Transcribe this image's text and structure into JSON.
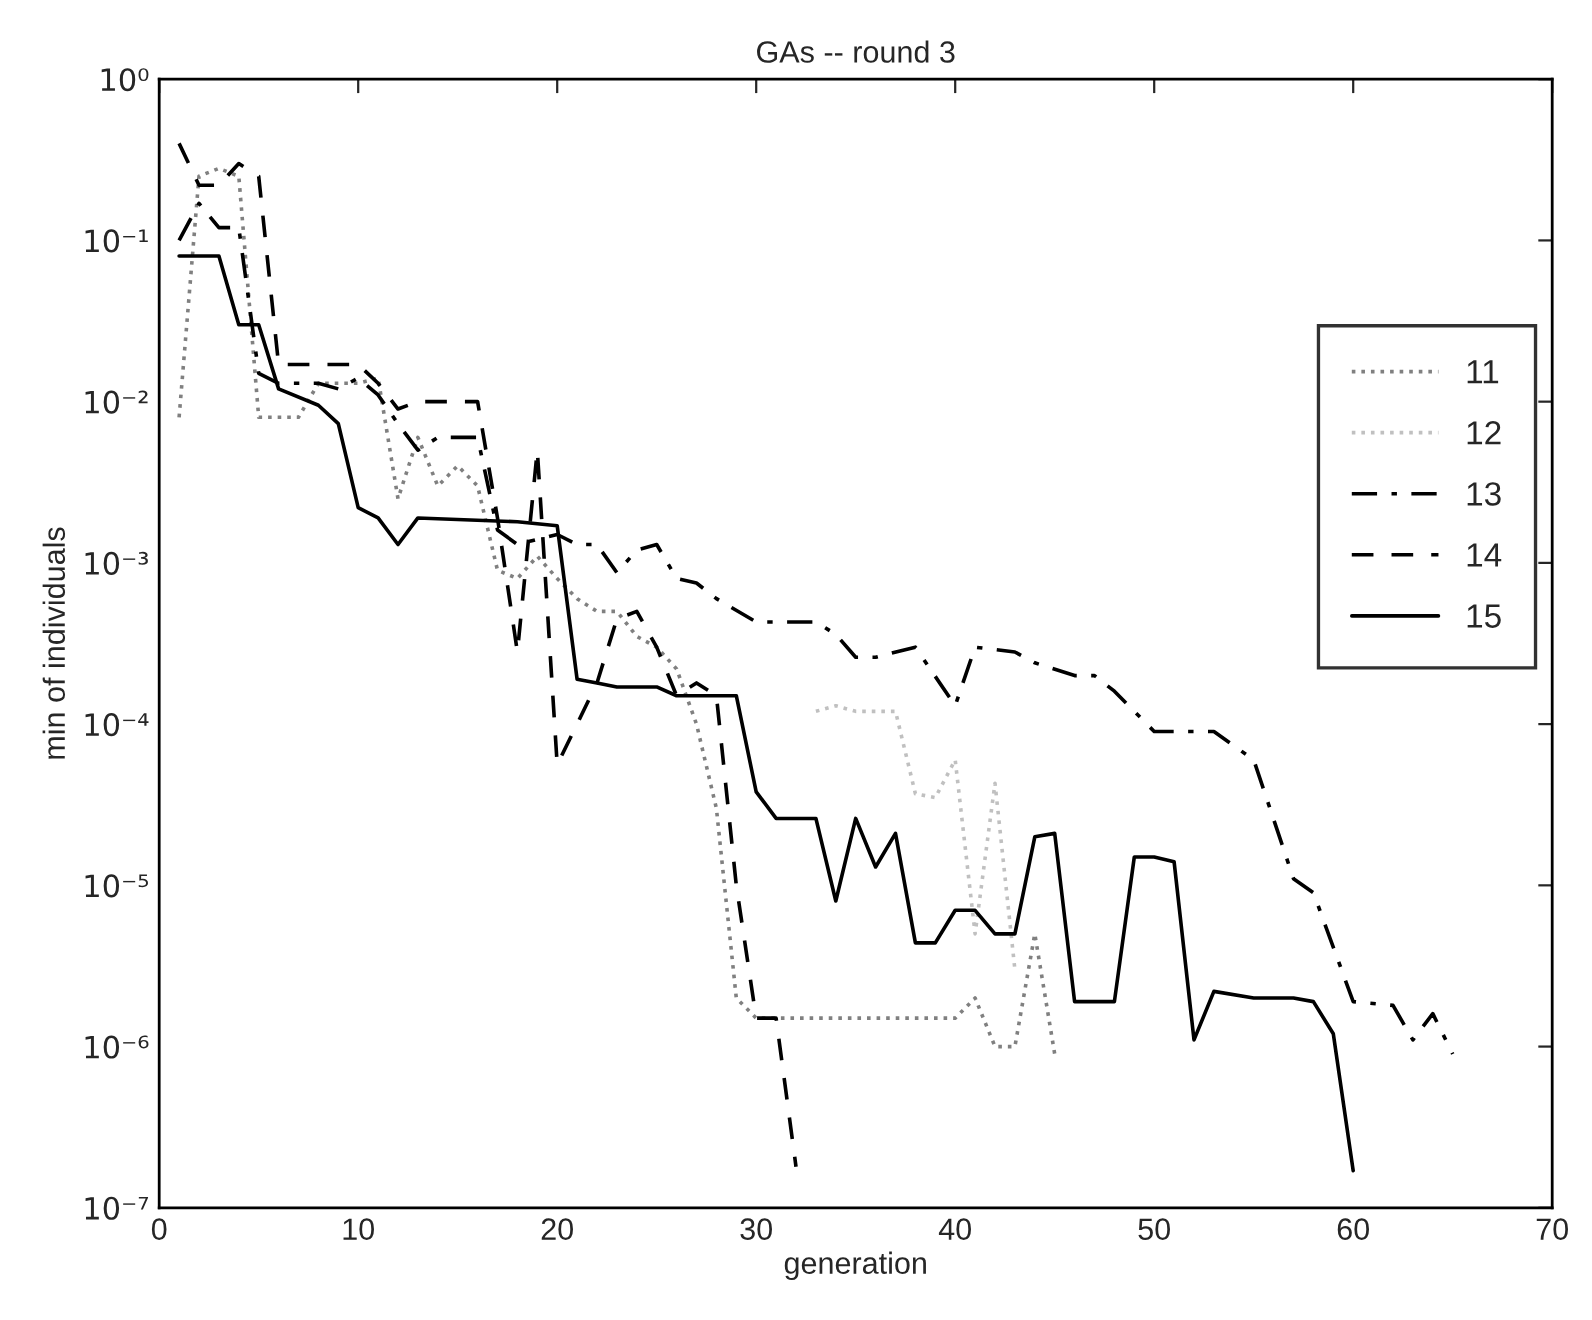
{
  "chart_data": {
    "type": "line",
    "title": "GAs -- round 3",
    "xlabel": "generation",
    "ylabel": "min of individuals",
    "log": "y",
    "xlim": [
      0,
      70
    ],
    "xticks": [
      0,
      10,
      20,
      30,
      40,
      50,
      60,
      70
    ],
    "ylim": [
      1e-07,
      1
    ],
    "yticks": [
      {
        "value": 1e-07,
        "label": "10⁻⁷"
      },
      {
        "value": 1e-06,
        "label": "10⁻⁶"
      },
      {
        "value": 1e-05,
        "label": "10⁻⁵"
      },
      {
        "value": 0.0001,
        "label": "10⁻⁴"
      },
      {
        "value": 0.001,
        "label": "10⁻³"
      },
      {
        "value": 0.01,
        "label": "10⁻²"
      },
      {
        "value": 0.1,
        "label": "10⁻¹"
      },
      {
        "value": 1,
        "label": "10⁰"
      }
    ],
    "grid": false,
    "legend": "right",
    "series": [
      {
        "name": "11",
        "color": "#808080",
        "line_style": "dotted",
        "x": [
          1,
          2,
          3,
          4,
          5,
          6,
          7,
          8,
          9,
          10,
          11,
          12,
          13,
          14,
          15,
          16,
          17,
          18,
          19,
          20,
          21,
          22,
          23,
          24,
          25,
          26,
          27,
          28,
          29,
          30,
          31,
          32,
          33,
          34,
          35,
          36,
          37,
          38,
          39,
          40,
          41,
          42,
          43,
          44,
          45
        ],
        "values": [
          0.008,
          0.25,
          0.28,
          0.25,
          0.008,
          0.008,
          0.008,
          0.013,
          0.013,
          0.013,
          0.014,
          0.0025,
          0.006,
          0.003,
          0.004,
          0.003,
          0.0009,
          0.0008,
          0.0011,
          0.0008,
          0.0006,
          0.0005,
          0.0005,
          0.00035,
          0.0003,
          0.00022,
          0.0001,
          3e-05,
          2e-06,
          1.5e-06,
          1.5e-06,
          1.5e-06,
          1.5e-06,
          1.5e-06,
          1.5e-06,
          1.5e-06,
          1.5e-06,
          1.5e-06,
          1.5e-06,
          1.5e-06,
          2e-06,
          1e-06,
          1e-06,
          5e-06,
          9e-07
        ]
      },
      {
        "name": "12",
        "color": "#c0c0c0",
        "line_style": "dotted",
        "x": [
          33,
          34,
          35,
          36,
          37,
          38,
          39,
          40,
          41,
          42,
          43
        ],
        "values": [
          0.00012,
          0.00013,
          0.00012,
          0.00012,
          0.00012,
          3.7e-05,
          3.5e-05,
          6e-05,
          5e-06,
          4.3e-05,
          3e-06
        ]
      },
      {
        "name": "13",
        "color": "#000000",
        "line_style": "dashdot",
        "x": [
          1,
          2,
          3,
          4,
          5,
          6,
          7,
          8,
          9,
          10,
          11,
          12,
          13,
          14,
          15,
          16,
          17,
          18,
          19,
          20,
          21,
          22,
          23,
          24,
          25,
          26,
          27,
          28,
          30,
          31,
          32,
          33,
          34,
          35,
          36,
          38,
          40,
          41,
          43,
          44,
          46,
          47,
          48,
          50,
          53,
          55,
          57,
          58,
          60,
          62,
          63,
          64,
          65
        ],
        "values": [
          0.1,
          0.17,
          0.12,
          0.12,
          0.015,
          0.013,
          0.013,
          0.013,
          0.012,
          0.014,
          0.011,
          0.0073,
          0.005,
          0.006,
          0.006,
          0.006,
          0.0016,
          0.0013,
          0.0014,
          0.0015,
          0.0013,
          0.0013,
          0.00087,
          0.0012,
          0.0013,
          0.0008,
          0.00075,
          0.0006,
          0.00043,
          0.00043,
          0.00043,
          0.00043,
          0.00036,
          0.00026,
          0.00026,
          0.0003,
          0.00013,
          0.0003,
          0.00028,
          0.00024,
          0.0002,
          0.0002,
          0.00016,
          9e-05,
          9e-05,
          6e-05,
          1.1e-05,
          9e-06,
          1.9e-06,
          1.8e-06,
          1.1e-06,
          1.6e-06,
          9e-07
        ]
      },
      {
        "name": "14",
        "color": "#000000",
        "line_style": "dashed",
        "x": [
          1,
          2,
          3,
          4,
          5,
          6,
          7,
          8,
          9,
          10,
          11,
          12,
          13,
          14,
          15,
          16,
          17,
          18,
          19,
          20,
          21,
          22,
          23,
          24,
          25,
          26,
          27,
          28,
          29,
          30,
          31,
          32
        ],
        "values": [
          0.4,
          0.22,
          0.22,
          0.3,
          0.25,
          0.017,
          0.017,
          0.017,
          0.017,
          0.017,
          0.013,
          0.009,
          0.01,
          0.01,
          0.01,
          0.01,
          0.0019,
          0.00028,
          0.005,
          5.6e-05,
          0.0001,
          0.00018,
          0.00045,
          0.0005,
          0.0003,
          0.00015,
          0.00018,
          0.00015,
          1e-05,
          1.5e-06,
          1.5e-06,
          1.8e-07
        ]
      },
      {
        "name": "15",
        "color": "#000000",
        "line_style": "solid",
        "x": [
          1,
          3,
          4,
          5,
          6,
          8,
          9,
          10,
          11,
          12,
          13,
          18,
          20,
          21,
          22,
          23,
          25,
          26,
          29,
          30,
          31,
          33,
          34,
          35,
          36,
          37,
          38,
          39,
          40,
          41,
          42,
          43,
          44,
          45,
          46,
          48,
          49,
          50,
          51,
          52,
          53,
          55,
          57,
          58,
          59,
          60
        ],
        "values": [
          0.08,
          0.08,
          0.03,
          0.03,
          0.012,
          0.0095,
          0.0073,
          0.0022,
          0.0019,
          0.0013,
          0.0019,
          0.0018,
          0.0017,
          0.00019,
          0.00018,
          0.00017,
          0.00017,
          0.00015,
          0.00015,
          3.8e-05,
          2.6e-05,
          2.6e-05,
          8e-06,
          2.6e-05,
          1.3e-05,
          2.1e-05,
          4.4e-06,
          4.4e-06,
          7e-06,
          7e-06,
          5e-06,
          5e-06,
          2e-05,
          2.1e-05,
          1.9e-06,
          1.9e-06,
          1.5e-05,
          1.5e-05,
          1.4e-05,
          1.1e-06,
          2.2e-06,
          2e-06,
          2e-06,
          1.9e-06,
          1.2e-06,
          1.7e-07
        ]
      }
    ]
  }
}
